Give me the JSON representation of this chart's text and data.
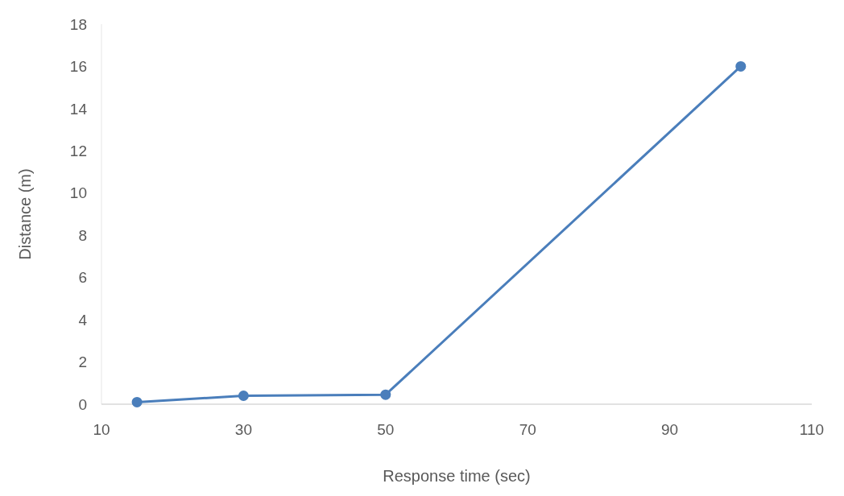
{
  "chart_data": {
    "type": "line",
    "xlabel": "Response time (sec)",
    "ylabel": "Distance (m)",
    "x": [
      15,
      30,
      50,
      100
    ],
    "series": [
      {
        "color": "#4a7ebb",
        "values": [
          0.1,
          0.4,
          0.45,
          16
        ]
      }
    ],
    "xlim": [
      10,
      110
    ],
    "xticks": [
      10,
      30,
      50,
      70,
      90,
      110
    ],
    "ylim": [
      0,
      18
    ],
    "yticks": [
      0,
      2,
      4,
      6,
      8,
      10,
      12,
      14,
      16,
      18
    ],
    "grid": false,
    "marker": "circle",
    "line_style": "solid"
  }
}
